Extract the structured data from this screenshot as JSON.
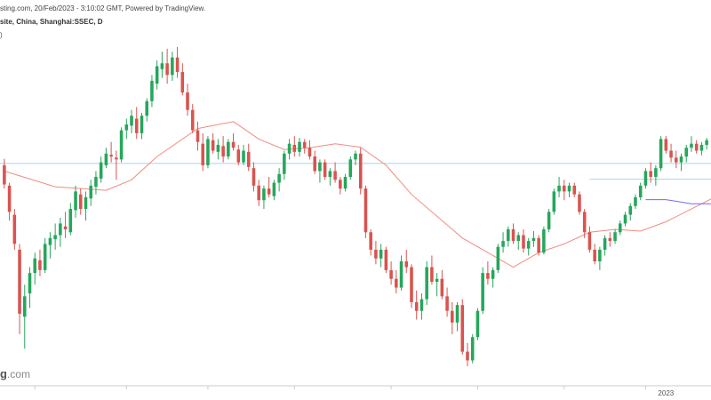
{
  "header": {
    "source_line": "sting.com, 20/Feb/2023 - 3:10:02 GMT, Powered by TradingView.",
    "symbol_line": "site, China, Shanghai:SSEC, D",
    "paren_line": ")"
  },
  "watermark": {
    "brand": "g",
    "tld": ".com"
  },
  "colors": {
    "up": "#26a65b",
    "down": "#d9534f",
    "ma_red": "#f28b82",
    "ma_blue": "#6c6cf0",
    "hline": "#a8d4ec",
    "axis": "#cccccc",
    "background": "#ffffff"
  },
  "chart_data": {
    "type": "candlestick",
    "x_labels": [
      {
        "index": 130,
        "text": "2023"
      }
    ],
    "y_range": [
      2880,
      3440
    ],
    "horizontal_levels": [
      {
        "price": 3228,
        "full_width": true
      },
      {
        "price": 3201,
        "start_index": 115
      }
    ],
    "ma_red": [
      [
        0,
        3215
      ],
      [
        10,
        3188
      ],
      [
        20,
        3182
      ],
      [
        25,
        3200
      ],
      [
        30,
        3240
      ],
      [
        38,
        3288
      ],
      [
        45,
        3300
      ],
      [
        50,
        3270
      ],
      [
        55,
        3252
      ],
      [
        60,
        3255
      ],
      [
        65,
        3262
      ],
      [
        70,
        3256
      ],
      [
        75,
        3225
      ],
      [
        80,
        3175
      ],
      [
        90,
        3100
      ],
      [
        100,
        3050
      ],
      [
        105,
        3075
      ],
      [
        110,
        3090
      ],
      [
        115,
        3110
      ],
      [
        120,
        3115
      ],
      [
        125,
        3112
      ],
      [
        130,
        3128
      ],
      [
        135,
        3150
      ],
      [
        140,
        3172
      ],
      [
        145,
        3192
      ],
      [
        148,
        3198
      ]
    ],
    "ma_blue": [
      [
        126,
        3166
      ],
      [
        130,
        3166
      ],
      [
        135,
        3159
      ],
      [
        140,
        3159
      ],
      [
        145,
        3166
      ],
      [
        148,
        3170
      ]
    ],
    "ohlc": [
      [
        3225,
        3236,
        3185,
        3192
      ],
      [
        3190,
        3195,
        3130,
        3145
      ],
      [
        3140,
        3150,
        3080,
        3090
      ],
      [
        3080,
        3090,
        2935,
        2970
      ],
      [
        2965,
        3020,
        2910,
        3000
      ],
      [
        3005,
        3050,
        2980,
        3040
      ],
      [
        3040,
        3075,
        3020,
        3065
      ],
      [
        3062,
        3080,
        3035,
        3045
      ],
      [
        3045,
        3100,
        3040,
        3090
      ],
      [
        3088,
        3110,
        3065,
        3100
      ],
      [
        3098,
        3125,
        3080,
        3105
      ],
      [
        3105,
        3135,
        3085,
        3125
      ],
      [
        3120,
        3145,
        3100,
        3115
      ],
      [
        3110,
        3160,
        3105,
        3150
      ],
      [
        3148,
        3190,
        3135,
        3180
      ],
      [
        3175,
        3185,
        3140,
        3150
      ],
      [
        3150,
        3180,
        3130,
        3170
      ],
      [
        3168,
        3200,
        3155,
        3190
      ],
      [
        3188,
        3215,
        3175,
        3205
      ],
      [
        3202,
        3240,
        3195,
        3230
      ],
      [
        3225,
        3255,
        3220,
        3245
      ],
      [
        3243,
        3265,
        3230,
        3240
      ],
      [
        3238,
        3250,
        3200,
        3235
      ],
      [
        3235,
        3290,
        3230,
        3285
      ],
      [
        3285,
        3305,
        3270,
        3295
      ],
      [
        3293,
        3320,
        3280,
        3310
      ],
      [
        3305,
        3325,
        3270,
        3280
      ],
      [
        3280,
        3315,
        3270,
        3310
      ],
      [
        3310,
        3340,
        3300,
        3335
      ],
      [
        3335,
        3380,
        3325,
        3370
      ],
      [
        3365,
        3405,
        3355,
        3395
      ],
      [
        3390,
        3420,
        3375,
        3400
      ],
      [
        3400,
        3425,
        3365,
        3380
      ],
      [
        3380,
        3420,
        3370,
        3410
      ],
      [
        3410,
        3428,
        3375,
        3385
      ],
      [
        3385,
        3400,
        3345,
        3350
      ],
      [
        3350,
        3365,
        3310,
        3320
      ],
      [
        3320,
        3330,
        3280,
        3285
      ],
      [
        3285,
        3300,
        3250,
        3265
      ],
      [
        3262,
        3280,
        3215,
        3225
      ],
      [
        3225,
        3275,
        3220,
        3270
      ],
      [
        3268,
        3280,
        3245,
        3250
      ],
      [
        3248,
        3270,
        3235,
        3260
      ],
      [
        3258,
        3275,
        3230,
        3240
      ],
      [
        3240,
        3270,
        3235,
        3265
      ],
      [
        3265,
        3280,
        3250,
        3255
      ],
      [
        3252,
        3260,
        3225,
        3230
      ],
      [
        3230,
        3260,
        3225,
        3250
      ],
      [
        3248,
        3262,
        3215,
        3222
      ],
      [
        3220,
        3230,
        3180,
        3190
      ],
      [
        3190,
        3200,
        3155,
        3165
      ],
      [
        3165,
        3190,
        3150,
        3185
      ],
      [
        3185,
        3205,
        3170,
        3175
      ],
      [
        3172,
        3200,
        3165,
        3195
      ],
      [
        3195,
        3220,
        3180,
        3210
      ],
      [
        3210,
        3250,
        3200,
        3245
      ],
      [
        3245,
        3270,
        3235,
        3262
      ],
      [
        3260,
        3275,
        3240,
        3248
      ],
      [
        3248,
        3272,
        3240,
        3265
      ],
      [
        3265,
        3270,
        3245,
        3255
      ],
      [
        3255,
        3268,
        3235,
        3240
      ],
      [
        3240,
        3250,
        3210,
        3215
      ],
      [
        3215,
        3235,
        3195,
        3230
      ],
      [
        3230,
        3235,
        3200,
        3205
      ],
      [
        3205,
        3220,
        3190,
        3215
      ],
      [
        3215,
        3230,
        3195,
        3200
      ],
      [
        3200,
        3205,
        3175,
        3185
      ],
      [
        3185,
        3210,
        3180,
        3205
      ],
      [
        3205,
        3240,
        3200,
        3235
      ],
      [
        3235,
        3250,
        3225,
        3245
      ],
      [
        3245,
        3255,
        3175,
        3185
      ],
      [
        3185,
        3190,
        3100,
        3110
      ],
      [
        3110,
        3115,
        3070,
        3080
      ],
      [
        3080,
        3095,
        3055,
        3065
      ],
      [
        3065,
        3090,
        3050,
        3080
      ],
      [
        3080,
        3085,
        3040,
        3045
      ],
      [
        3045,
        3060,
        3020,
        3030
      ],
      [
        3030,
        3045,
        3005,
        3015
      ],
      [
        3015,
        3070,
        3010,
        3060
      ],
      [
        3060,
        3080,
        3040,
        3050
      ],
      [
        3050,
        3055,
        2980,
        2990
      ],
      [
        2990,
        3010,
        2960,
        2975
      ],
      [
        2975,
        3005,
        2960,
        2995
      ],
      [
        2995,
        3060,
        2985,
        3050
      ],
      [
        3050,
        3070,
        3020,
        3025
      ],
      [
        3025,
        3040,
        3000,
        3030
      ],
      [
        3030,
        3045,
        2995,
        3000
      ],
      [
        3000,
        3015,
        2965,
        2975
      ],
      [
        2975,
        2990,
        2935,
        2955
      ],
      [
        2955,
        2990,
        2940,
        2985
      ],
      [
        2985,
        2995,
        2900,
        2905
      ],
      [
        2905,
        2920,
        2880,
        2890
      ],
      [
        2890,
        2935,
        2885,
        2930
      ],
      [
        2930,
        2980,
        2925,
        2975
      ],
      [
        2975,
        3050,
        2970,
        3040
      ],
      [
        3040,
        3060,
        3020,
        3030
      ],
      [
        3030,
        3050,
        3015,
        3045
      ],
      [
        3045,
        3090,
        3040,
        3085
      ],
      [
        3085,
        3110,
        3075,
        3095
      ],
      [
        3095,
        3120,
        3085,
        3115
      ],
      [
        3115,
        3125,
        3090,
        3095
      ],
      [
        3095,
        3110,
        3080,
        3105
      ],
      [
        3105,
        3115,
        3075,
        3082
      ],
      [
        3082,
        3100,
        3070,
        3095
      ],
      [
        3095,
        3112,
        3085,
        3100
      ],
      [
        3100,
        3105,
        3070,
        3075
      ],
      [
        3075,
        3120,
        3072,
        3115
      ],
      [
        3115,
        3150,
        3110,
        3145
      ],
      [
        3145,
        3185,
        3140,
        3180
      ],
      [
        3180,
        3205,
        3170,
        3190
      ],
      [
        3190,
        3200,
        3165,
        3180
      ],
      [
        3180,
        3195,
        3170,
        3190
      ],
      [
        3190,
        3195,
        3170,
        3175
      ],
      [
        3175,
        3180,
        3140,
        3145
      ],
      [
        3145,
        3150,
        3100,
        3110
      ],
      [
        3110,
        3120,
        3075,
        3080
      ],
      [
        3080,
        3090,
        3055,
        3060
      ],
      [
        3060,
        3085,
        3045,
        3080
      ],
      [
        3080,
        3105,
        3070,
        3100
      ],
      [
        3100,
        3110,
        3085,
        3095
      ],
      [
        3095,
        3115,
        3090,
        3110
      ],
      [
        3110,
        3130,
        3105,
        3125
      ],
      [
        3125,
        3145,
        3120,
        3140
      ],
      [
        3140,
        3160,
        3130,
        3155
      ],
      [
        3155,
        3175,
        3150,
        3170
      ],
      [
        3170,
        3195,
        3165,
        3190
      ],
      [
        3190,
        3220,
        3185,
        3215
      ],
      [
        3215,
        3230,
        3195,
        3205
      ],
      [
        3205,
        3225,
        3190,
        3220
      ],
      [
        3220,
        3275,
        3215,
        3270
      ],
      [
        3270,
        3275,
        3245,
        3250
      ],
      [
        3250,
        3262,
        3230,
        3238
      ],
      [
        3238,
        3250,
        3220,
        3230
      ],
      [
        3230,
        3245,
        3215,
        3240
      ],
      [
        3240,
        3260,
        3230,
        3255
      ],
      [
        3255,
        3275,
        3248,
        3262
      ],
      [
        3262,
        3268,
        3245,
        3250
      ],
      [
        3250,
        3265,
        3242,
        3260
      ],
      [
        3260,
        3272,
        3252,
        3268
      ]
    ]
  }
}
